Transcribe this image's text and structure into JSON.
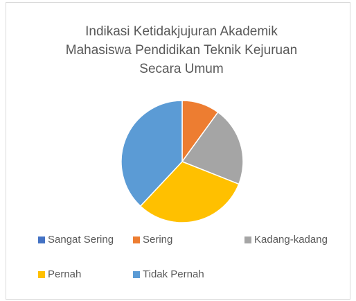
{
  "chart_data": {
    "type": "pie",
    "title": "Indikasi Ketidakjujuran Akademik Mahasiswa Pendidikan Teknik Kejuruan Secara Umum",
    "categories": [
      "Sangat Sering",
      "Sering",
      "Kadang-kadang",
      "Pernah",
      "Tidak Pernah"
    ],
    "values": [
      0,
      10,
      21,
      31,
      38
    ],
    "colors": [
      "#4472c4",
      "#ed7d31",
      "#a5a5a5",
      "#ffc000",
      "#5b9bd5"
    ],
    "legend": "bottom"
  }
}
